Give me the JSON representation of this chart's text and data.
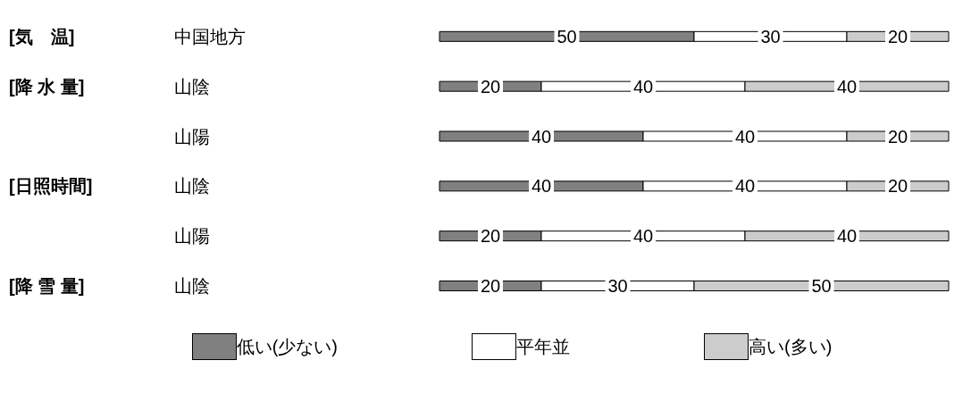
{
  "chart_data": {
    "type": "bar",
    "orientation": "horizontal",
    "stacked": true,
    "data_labels": true,
    "legend": "bottom",
    "grid": false,
    "categories": [
      "[気　温] 中国地方",
      "[降 水 量] 山陰",
      "山陽",
      "[日照時間] 山陰",
      "山陽",
      "[降 雪 量] 山陰"
    ],
    "series": [
      {
        "name": "低い(少ない)",
        "color": "#808080",
        "values": [
          50,
          20,
          40,
          40,
          20,
          20
        ]
      },
      {
        "name": "平年並",
        "color": "#ffffff",
        "values": [
          30,
          40,
          40,
          40,
          40,
          30
        ]
      },
      {
        "name": "高い(多い)",
        "color": "#cccccc",
        "values": [
          20,
          40,
          20,
          20,
          40,
          50
        ]
      }
    ]
  }
}
